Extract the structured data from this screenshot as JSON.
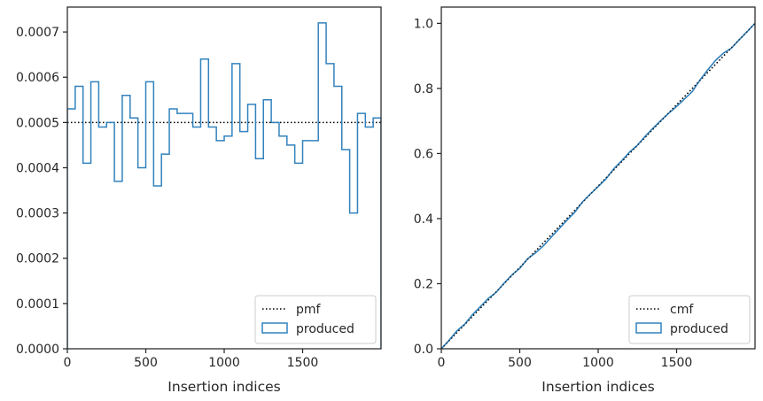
{
  "chart_data": [
    {
      "type": "step",
      "xlabel": "Insertion indices",
      "ylabel": "",
      "xlim": [
        0,
        2000
      ],
      "ylim": [
        0,
        0.000755
      ],
      "xticks": [
        0,
        500,
        1000,
        1500
      ],
      "xtick_labels": [
        "0",
        "500",
        "1000",
        "1500"
      ],
      "yticks": [
        0,
        0.0001,
        0.0002,
        0.0003,
        0.0004,
        0.0005,
        0.0006,
        0.0007
      ],
      "ytick_labels": [
        "0.0000",
        "0.0001",
        "0.0002",
        "0.0003",
        "0.0004",
        "0.0005",
        "0.0006",
        "0.0007"
      ],
      "legend_position": "lower right",
      "series": [
        {
          "name": "pmf",
          "style": "dotted",
          "color": "#000000",
          "x": [
            0,
            2000
          ],
          "y": [
            0.0005,
            0.0005
          ]
        },
        {
          "name": "produced",
          "style": "step-histogram",
          "color": "#3182bd",
          "bin_width": 50,
          "bin_starts": [
            0,
            50,
            100,
            150,
            200,
            250,
            300,
            350,
            400,
            450,
            500,
            550,
            600,
            650,
            700,
            750,
            800,
            850,
            900,
            950,
            1000,
            1050,
            1100,
            1150,
            1200,
            1250,
            1300,
            1350,
            1400,
            1450,
            1500,
            1550,
            1600,
            1650,
            1700,
            1750,
            1800,
            1850,
            1900,
            1950
          ],
          "values": [
            0.00053,
            0.00058,
            0.00041,
            0.00059,
            0.00049,
            0.0005,
            0.00037,
            0.00056,
            0.00051,
            0.0004,
            0.00059,
            0.00036,
            0.00043,
            0.00053,
            0.00052,
            0.00052,
            0.00049,
            0.00064,
            0.00049,
            0.00046,
            0.00047,
            0.00063,
            0.00048,
            0.00054,
            0.00042,
            0.00055,
            0.0005,
            0.00047,
            0.00045,
            0.00041,
            0.00046,
            0.00046,
            0.00072,
            0.00063,
            0.00058,
            0.00044,
            0.0003,
            0.00052,
            0.00049,
            0.00051
          ]
        }
      ]
    },
    {
      "type": "line",
      "xlabel": "Insertion indices",
      "ylabel": "",
      "xlim": [
        0,
        2000
      ],
      "ylim": [
        0,
        1.05
      ],
      "xticks": [
        0,
        500,
        1000,
        1500
      ],
      "xtick_labels": [
        "0",
        "500",
        "1000",
        "1500"
      ],
      "yticks": [
        0,
        0.2,
        0.4,
        0.6,
        0.8,
        1.0
      ],
      "ytick_labels": [
        "0.0",
        "0.2",
        "0.4",
        "0.6",
        "0.8",
        "1.0"
      ],
      "legend_position": "lower right",
      "series": [
        {
          "name": "cmf",
          "style": "dotted",
          "color": "#000000",
          "x": [
            0,
            2000
          ],
          "y": [
            0,
            1.0
          ]
        },
        {
          "name": "produced",
          "style": "cumulative-step",
          "color": "#3182bd",
          "note_source": "cumulative sum of left-panel bins"
        }
      ]
    }
  ]
}
